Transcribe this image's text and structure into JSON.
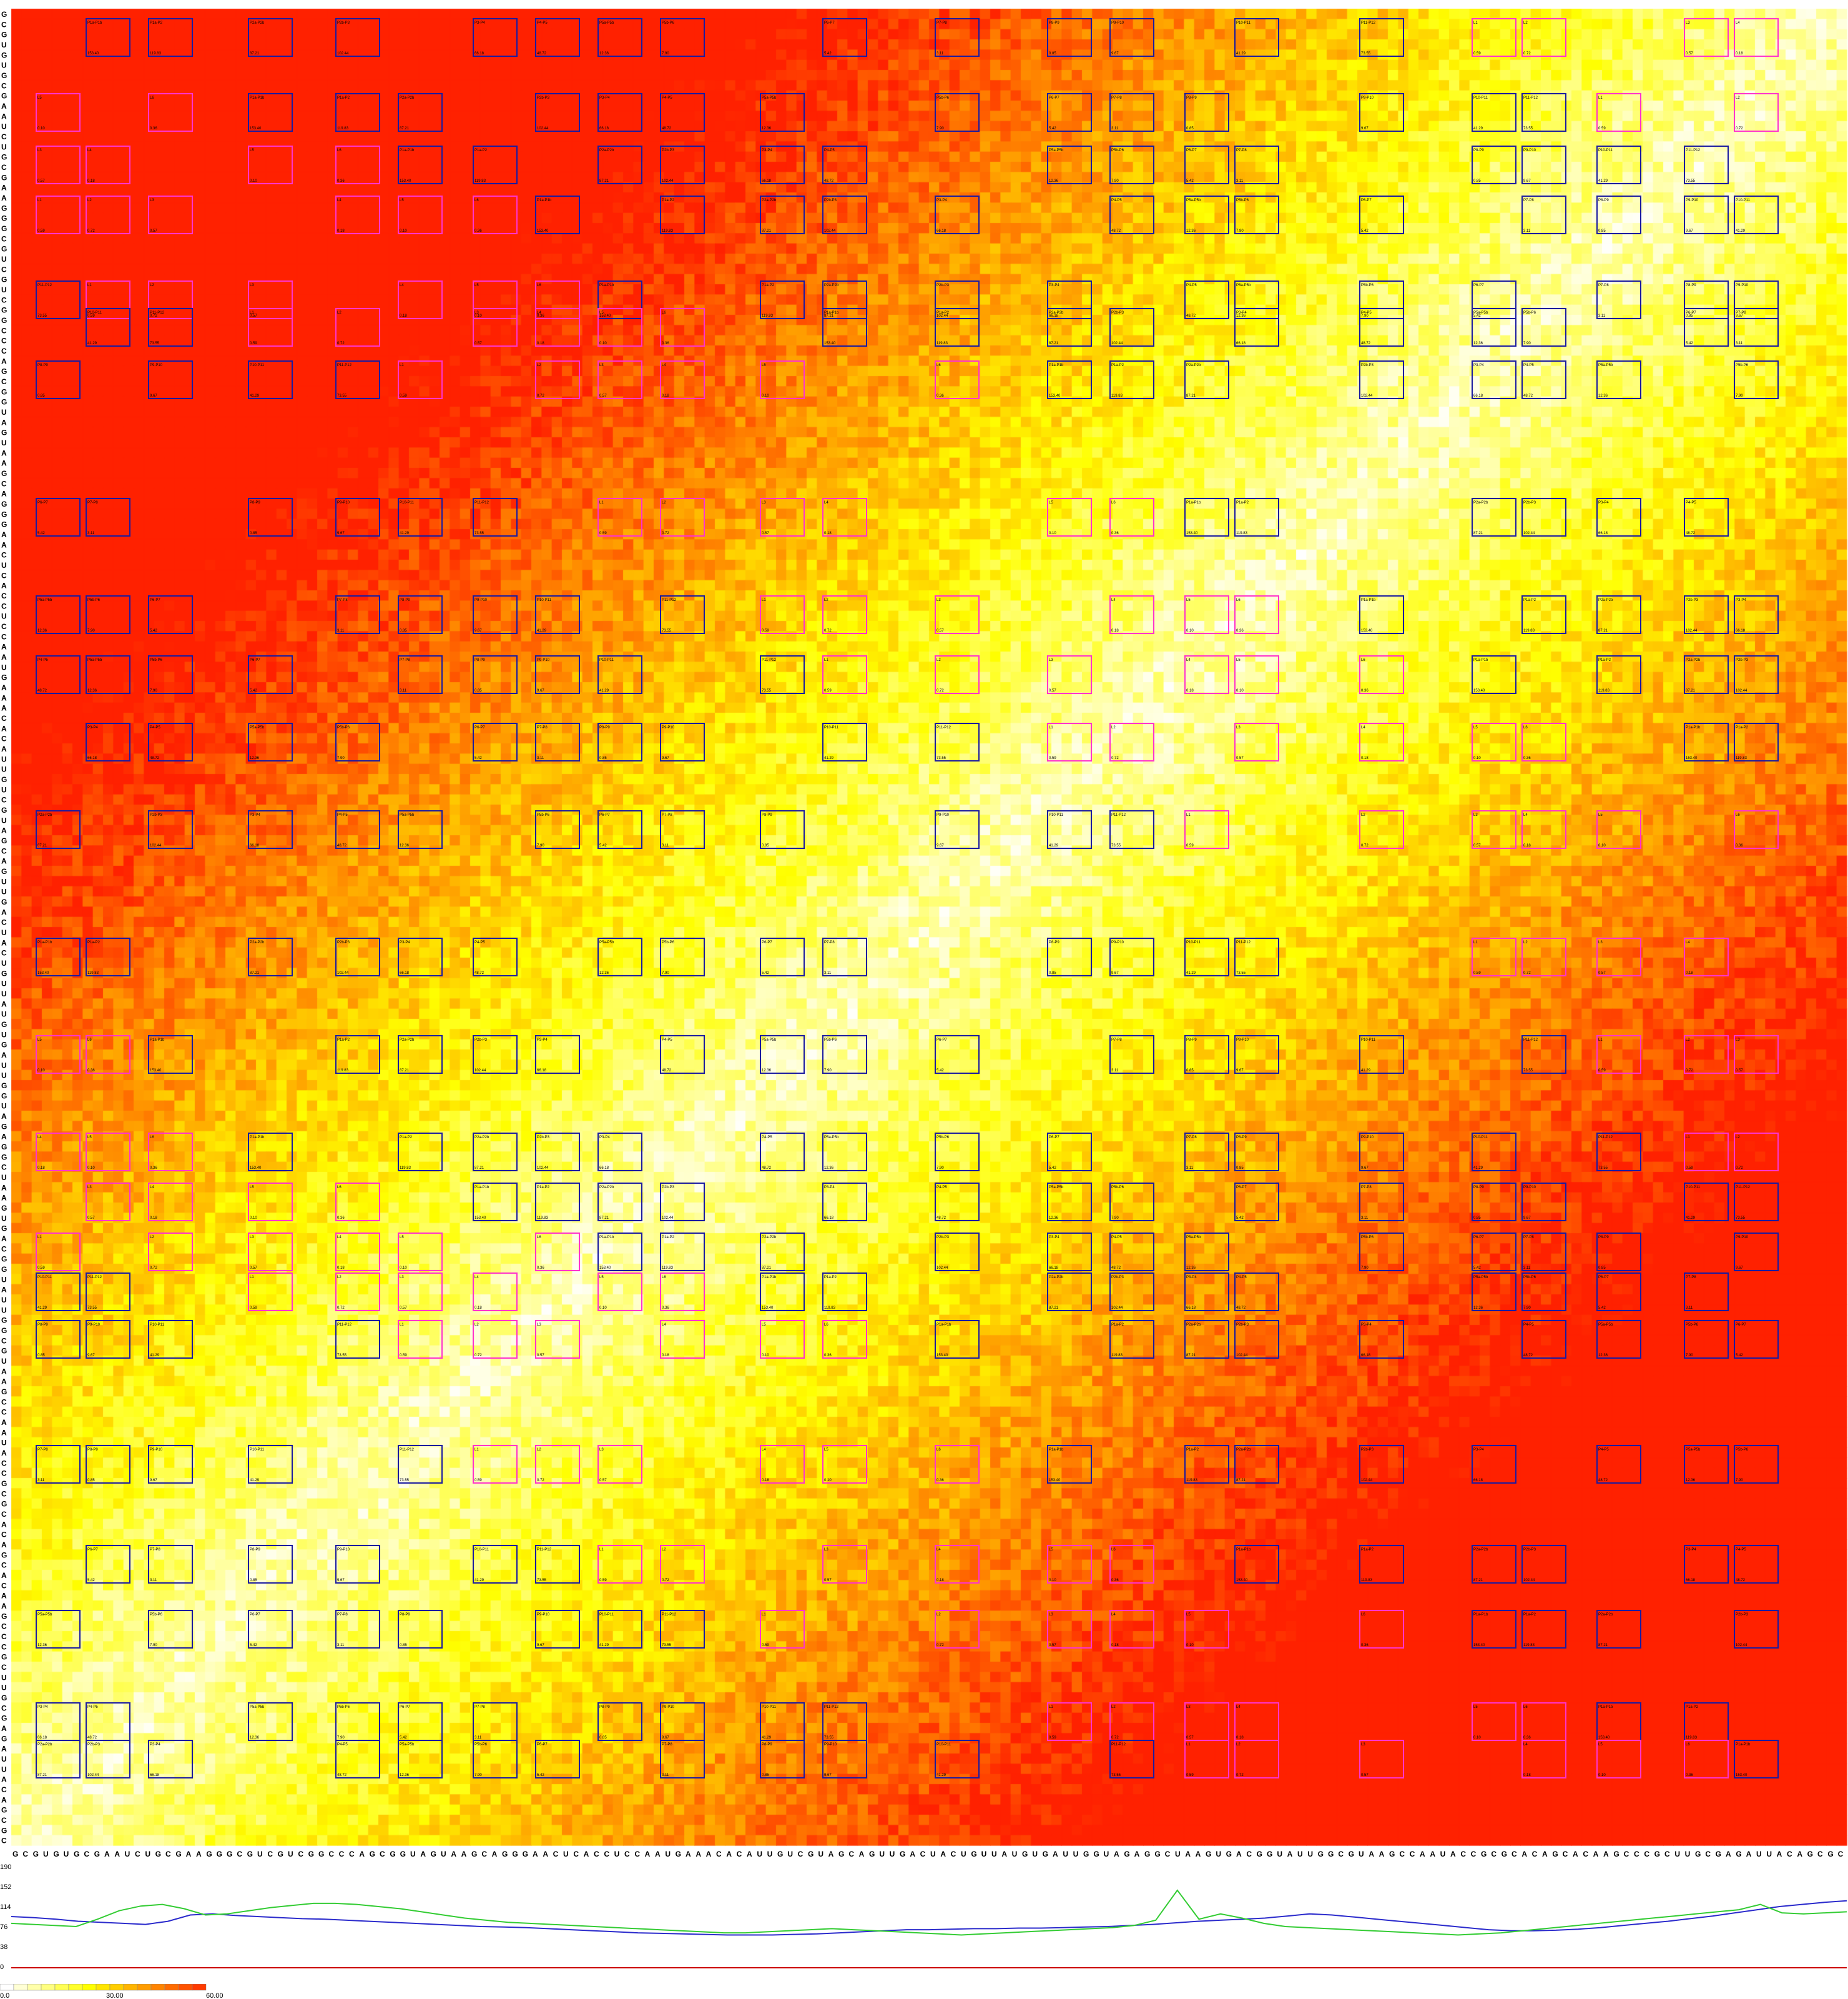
{
  "sequence": "GCGUGUGCGAAUCUGCGAAGGGCGUCGUCGGCCCAGCGGUAGUAAGCAGGGAACUCACCUCCAAUGAAACACAUUGUCGUAGCAGUUGACUACUGUUAUGUGAUUGGUAGAGGCUAAGUGACGGUAUUGGCGUAAGCCAAUACCGCGCACAGCACAAGCCCGCUUGCGAGAUUACAGCGC",
  "colors": {
    "heat_low": "#ffffff",
    "heat_mid": "#ffff00",
    "heat_high": "#ff2200",
    "box_helix": "#1a1aa0",
    "box_loop": "#ff33cc",
    "curve_blue": "#2a2acc",
    "curve_green": "#33cc33",
    "baseline_red": "#cc0000"
  },
  "chart_data": [
    {
      "type": "heatmap",
      "title": "",
      "xlabel": "",
      "ylabel": "",
      "row_band_labels": [
        "G",
        "C",
        "A"
      ],
      "box_annotations": [
        {
          "label": "P1a-P1b",
          "value": "153.40"
        },
        {
          "label": "P1a-P2",
          "value": "119.83"
        },
        {
          "label": "P2a-P2b",
          "value": "87.21"
        },
        {
          "label": "P2b-P3",
          "value": "102.44"
        },
        {
          "label": "P3-P4",
          "value": "66.18"
        },
        {
          "label": "P4-P5",
          "value": "48.72"
        },
        {
          "label": "P5a-P5b",
          "value": "12.36"
        },
        {
          "label": "P5b-P6",
          "value": "7.90"
        },
        {
          "label": "P6-P7",
          "value": "5.42"
        },
        {
          "label": "P7-P8",
          "value": "3.11"
        },
        {
          "label": "P8-P9",
          "value": "0.85"
        },
        {
          "label": "P9-P10",
          "value": "9.67"
        },
        {
          "label": "P10-P11",
          "value": "41.29"
        },
        {
          "label": "P11-P12",
          "value": "73.55"
        },
        {
          "label": "L1",
          "value": "0.59"
        },
        {
          "label": "L2",
          "value": "0.72"
        },
        {
          "label": "L3",
          "value": "0.57"
        },
        {
          "label": "L4",
          "value": "0.18"
        },
        {
          "label": "L5",
          "value": "0.10"
        },
        {
          "label": "L6",
          "value": "0.36"
        }
      ]
    },
    {
      "type": "line",
      "title": "",
      "xlabel": "",
      "ylabel": "",
      "ylim": [
        0,
        190
      ],
      "yticks": [
        "190",
        "152",
        "114",
        "76",
        "38",
        "0"
      ],
      "series": [
        {
          "values": [
            95,
            93,
            90,
            86,
            84,
            82,
            80,
            86,
            98,
            100,
            97,
            95,
            93,
            91,
            90,
            88,
            86,
            84,
            82,
            80,
            78,
            76,
            75,
            74,
            72,
            70,
            68,
            66,
            64,
            63,
            62,
            61,
            60,
            60,
            60,
            61,
            62,
            64,
            66,
            68,
            70,
            70,
            71,
            72,
            72,
            73,
            73,
            74,
            75,
            76,
            78,
            80,
            83,
            86,
            88,
            90,
            92,
            96,
            100,
            98,
            94,
            90,
            86,
            82,
            78,
            74,
            70,
            68,
            68,
            69,
            71,
            74,
            78,
            82,
            86,
            91,
            96,
            102,
            108,
            114,
            118,
            122,
            125
          ]
        },
        {
          "values": [
            82,
            80,
            78,
            76,
            90,
            106,
            115,
            118,
            110,
            98,
            100,
            106,
            112,
            116,
            120,
            120,
            118,
            114,
            110,
            104,
            98,
            92,
            88,
            84,
            82,
            80,
            78,
            76,
            74,
            72,
            70,
            68,
            66,
            64,
            64,
            66,
            68,
            70,
            72,
            70,
            68,
            66,
            64,
            62,
            60,
            62,
            64,
            66,
            68,
            70,
            72,
            74,
            78,
            88,
            145,
            90,
            100,
            92,
            82,
            76,
            74,
            72,
            70,
            68,
            66,
            64,
            62,
            60,
            62,
            64,
            68,
            72,
            76,
            80,
            84,
            88,
            92,
            96,
            100,
            104,
            108,
            118,
            102,
            100,
            102,
            104
          ]
        }
      ]
    },
    {
      "type": "table",
      "title": "",
      "scale_labels": [
        "0.0",
        "30.00",
        "60.00"
      ],
      "scale_range": [
        0,
        60
      ]
    }
  ]
}
